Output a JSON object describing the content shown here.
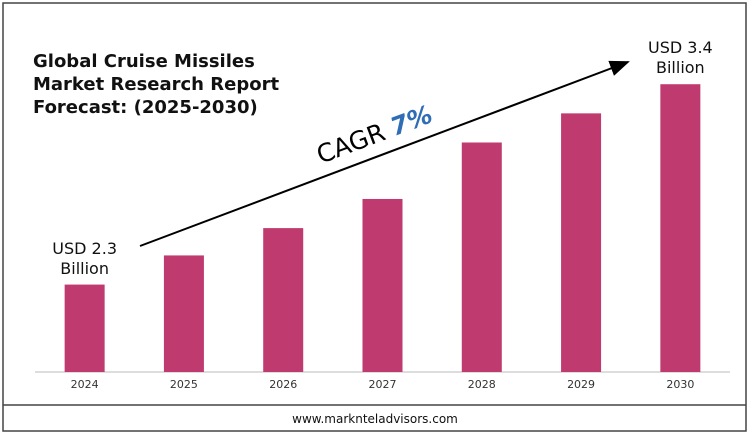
{
  "chart_data": {
    "type": "bar",
    "title": "Global Cruise Missiles Market Research Report Forecast: (2025-2030)",
    "categories": [
      "2024",
      "2025",
      "2026",
      "2027",
      "2028",
      "2029",
      "2030"
    ],
    "values": [
      2.3,
      2.46,
      2.61,
      2.77,
      3.08,
      3.24,
      3.4
    ],
    "value_labels": [
      "USD 2.3 Billion",
      null,
      null,
      null,
      null,
      null,
      "USD 3.4 Billion"
    ],
    "color": "#bf3a6e",
    "ylim": [
      1.82,
      3.5
    ],
    "cagr_label": "CAGR",
    "cagr_value": "7%",
    "footer": "www.marknteladvisors.com"
  }
}
